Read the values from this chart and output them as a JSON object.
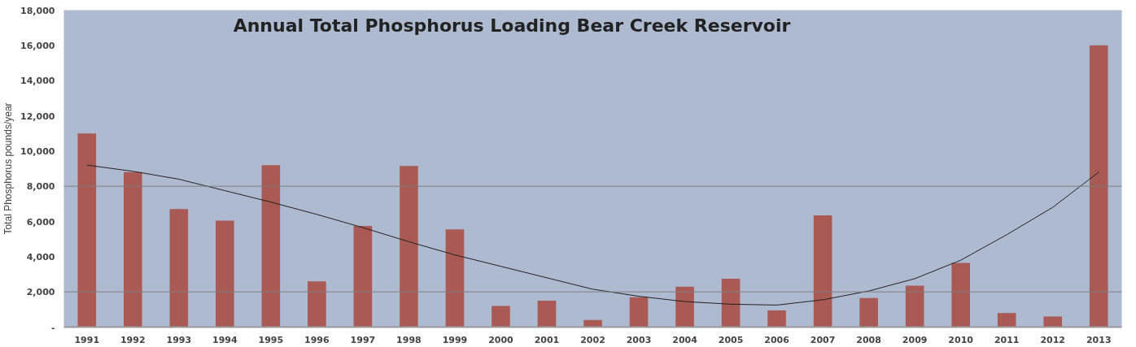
{
  "chart_data": {
    "type": "bar",
    "title": "Annual Total Phosphorus Loading Bear Creek Reservoir",
    "ylabel": "Total Phosphorus pounds/year",
    "categories": [
      "1991",
      "1992",
      "1993",
      "1994",
      "1995",
      "1996",
      "1997",
      "1998",
      "1999",
      "2000",
      "2001",
      "2002",
      "2003",
      "2004",
      "2005",
      "2006",
      "2007",
      "2008",
      "2009",
      "2010",
      "2011",
      "2012",
      "2013"
    ],
    "series": [
      {
        "color": "#a95a55",
        "values": [
          11000,
          8800,
          6700,
          6050,
          9200,
          2600,
          5750,
          9150,
          5550,
          1200,
          1500,
          400,
          1700,
          2300,
          2750,
          950,
          6350,
          1650,
          2350,
          3650,
          800,
          600,
          16000
        ]
      },
      {
        "type": "line",
        "color": "#222222",
        "values": [
          9200,
          8850,
          8400,
          7750,
          7100,
          6400,
          5650,
          4850,
          4100,
          3450,
          2800,
          2150,
          1750,
          1450,
          1300,
          1250,
          1550,
          2050,
          2750,
          3800,
          5250,
          6800,
          8800
        ]
      }
    ],
    "ylim": [
      0,
      18000
    ],
    "yticks": [
      {
        "value": 0,
        "label": "-"
      },
      {
        "value": 2000,
        "label": "2,000"
      },
      {
        "value": 4000,
        "label": "4,000"
      },
      {
        "value": 6000,
        "label": "6,000"
      },
      {
        "value": 8000,
        "label": "8,000"
      },
      {
        "value": 10000,
        "label": "10,000"
      },
      {
        "value": 12000,
        "label": "12,000"
      },
      {
        "value": 14000,
        "label": "14,000"
      },
      {
        "value": 16000,
        "label": "16,000"
      },
      {
        "value": 18000,
        "label": "18,000"
      }
    ],
    "ref_lines": [
      {
        "axis": "y",
        "value": 2000,
        "color": "#808080"
      },
      {
        "axis": "y",
        "value": 8000,
        "color": "#808080"
      }
    ],
    "marker": "none",
    "line_style": "solid"
  }
}
